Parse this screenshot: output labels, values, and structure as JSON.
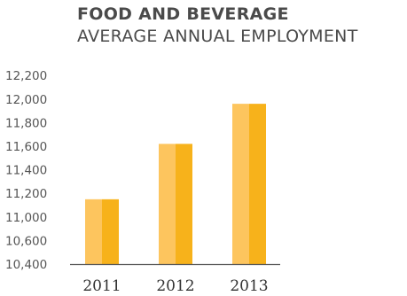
{
  "chart_data": {
    "type": "bar",
    "title": "FOOD AND BEVERAGE",
    "subtitle": "AVERAGE ANNUAL EMPLOYMENT",
    "categories": [
      "2011",
      "2012",
      "2013"
    ],
    "values": [
      11150,
      11620,
      11960
    ],
    "ylim": [
      10400,
      12200
    ],
    "yticks": [
      "12,200",
      "12,000",
      "11,800",
      "11,600",
      "11,400",
      "11,200",
      "11,000",
      "10,600",
      "10,400"
    ],
    "ytick_values": [
      12200,
      12000,
      11800,
      11600,
      11400,
      11200,
      11000,
      10600,
      10400
    ],
    "grid": false,
    "colors": {
      "bar_light": "#FDC55E",
      "bar_dark": "#F7B21B",
      "axis": "#555555"
    }
  }
}
